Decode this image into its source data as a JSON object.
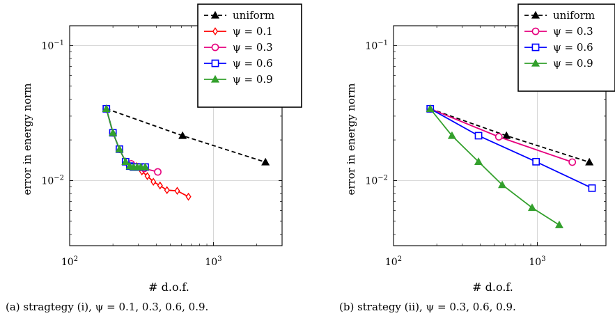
{
  "chart_data": [
    {
      "type": "line",
      "xscale": "log",
      "yscale": "log",
      "xlim": [
        100,
        3000
      ],
      "ylim": [
        0.0033,
        0.14
      ],
      "xlabel": "# d.o.f.",
      "ylabel": "error in energy norm",
      "xticks": [
        {
          "value": 100,
          "base": "10",
          "exp": "2"
        },
        {
          "value": 1000,
          "base": "10",
          "exp": "3"
        }
      ],
      "yticks": [
        {
          "value": 0.01,
          "base": "10",
          "exp": "−2"
        },
        {
          "value": 0.1,
          "base": "10",
          "exp": "−1"
        }
      ],
      "grid": true,
      "legend_position": "top-right",
      "caption": "(a) stragtegy (i), ψ = 0.1, 0.3, 0.6, 0.9.",
      "series": [
        {
          "name": "uniform",
          "color": "#000000",
          "dash": true,
          "marker": "triangle",
          "x": [
            180,
            610,
            2300
          ],
          "y": [
            0.034,
            0.0215,
            0.0137
          ]
        },
        {
          "name": "ψ = 0.1",
          "color": "#ff0000",
          "dash": false,
          "marker": "diamond",
          "x": [
            180,
            200,
            222,
            245,
            268,
            292,
            318,
            347,
            382,
            425,
            475,
            560,
            670
          ],
          "y": [
            0.034,
            0.0226,
            0.0171,
            0.0138,
            0.0133,
            0.0128,
            0.0117,
            0.0108,
            0.0098,
            0.0092,
            0.0085,
            0.0084,
            0.0076
          ]
        },
        {
          "name": "ψ = 0.3",
          "color": "#e6007e",
          "dash": false,
          "marker": "circle",
          "x": [
            180,
            200,
            222,
            245,
            268,
            295,
            330,
            410
          ],
          "y": [
            0.034,
            0.0226,
            0.0171,
            0.0138,
            0.0133,
            0.0127,
            0.0123,
            0.0116
          ]
        },
        {
          "name": "ψ = 0.6",
          "color": "#0000ff",
          "dash": false,
          "marker": "square",
          "x": [
            180,
            200,
            222,
            245,
            262,
            278,
            295,
            312,
            335
          ],
          "y": [
            0.034,
            0.0226,
            0.0171,
            0.0138,
            0.0128,
            0.0126,
            0.0126,
            0.0126,
            0.0126
          ]
        },
        {
          "name": "ψ = 0.9",
          "color": "#33a02c",
          "dash": false,
          "marker": "triangle",
          "x": [
            180,
            200,
            222,
            245,
            262,
            278,
            295,
            312,
            335
          ],
          "y": [
            0.034,
            0.0226,
            0.0171,
            0.0138,
            0.0128,
            0.0126,
            0.0126,
            0.0126,
            0.0126
          ]
        }
      ]
    },
    {
      "type": "line",
      "xscale": "log",
      "yscale": "log",
      "xlim": [
        100,
        3000
      ],
      "ylim": [
        0.0033,
        0.14
      ],
      "xlabel": "# d.o.f.",
      "ylabel": "error in energy norm",
      "xticks": [
        {
          "value": 100,
          "base": "10",
          "exp": "2"
        },
        {
          "value": 1000,
          "base": "10",
          "exp": "3"
        }
      ],
      "yticks": [
        {
          "value": 0.01,
          "base": "10",
          "exp": "−2"
        },
        {
          "value": 0.1,
          "base": "10",
          "exp": "−1"
        }
      ],
      "grid": true,
      "legend_position": "top-right",
      "caption": "(b) strategy (ii), ψ = 0.3, 0.6, 0.9.",
      "series": [
        {
          "name": "uniform",
          "color": "#000000",
          "dash": true,
          "marker": "triangle",
          "x": [
            180,
            610,
            2300
          ],
          "y": [
            0.034,
            0.0215,
            0.0137
          ]
        },
        {
          "name": "ψ = 0.3",
          "color": "#e6007e",
          "dash": false,
          "marker": "circle",
          "x": [
            180,
            540,
            1750
          ],
          "y": [
            0.034,
            0.0211,
            0.0137
          ]
        },
        {
          "name": "ψ = 0.6",
          "color": "#0000ff",
          "dash": false,
          "marker": "square",
          "x": [
            180,
            390,
            980,
            2400
          ],
          "y": [
            0.034,
            0.0215,
            0.0138,
            0.0088
          ]
        },
        {
          "name": "ψ = 0.9",
          "color": "#33a02c",
          "dash": false,
          "marker": "triangle",
          "x": [
            180,
            255,
            390,
            570,
            920,
            1420
          ],
          "y": [
            0.034,
            0.0215,
            0.0138,
            0.0093,
            0.0063,
            0.0047
          ]
        }
      ]
    }
  ]
}
